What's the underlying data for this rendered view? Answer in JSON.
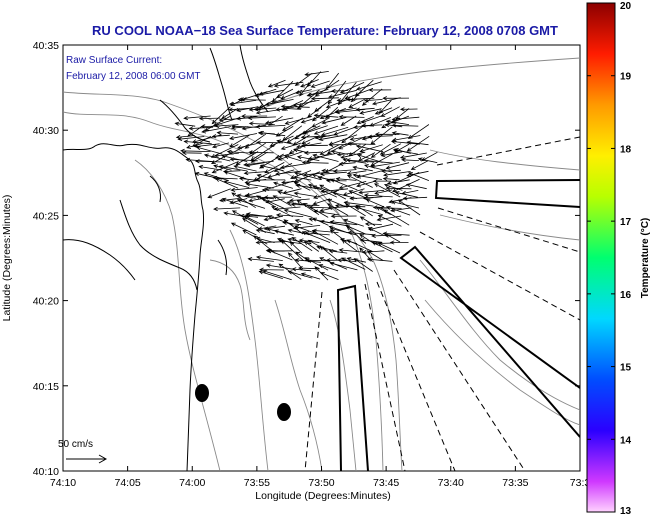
{
  "chart_data": {
    "type": "map-vector-field",
    "title": "RU COOL  NOAA−18  Sea Surface Temperature:  February 12, 2008 0708 GMT",
    "annotation_line1": "Raw Surface Current:",
    "annotation_line2": "February 12, 2008 06:00 GMT",
    "xlabel": "Longitude (Degrees:Minutes)",
    "ylabel": "Latitude (Degrees:Minutes)",
    "x_ticks": [
      "74:10",
      "74:05",
      "74:00",
      "73:55",
      "73:50",
      "73:45",
      "73:40",
      "73:35",
      "73:3"
    ],
    "y_ticks": [
      "40:35",
      "40:30",
      "40:25",
      "40:20",
      "40:15",
      "40:10"
    ],
    "xlim_deg_west": [
      74.1667,
      73.5
    ],
    "ylim_deg_north": [
      40.1667,
      40.5833
    ],
    "scale_label": "50 cm/s",
    "colorbar": {
      "label": "Temperature (°C)",
      "range": [
        13,
        20
      ],
      "ticks": [
        "20",
        "19",
        "18",
        "17",
        "16",
        "15",
        "14",
        "13"
      ]
    },
    "current_field": {
      "unit": "cm/s",
      "dominant_direction": "toward the southwest/south-southwest",
      "typical_speed_cm_s": 55
    }
  },
  "colors": {
    "title_text": "#1a1aa6",
    "map_background": "#ffffff",
    "coastline": "#000000",
    "bathymetry": "#808080",
    "vectors": "#000000"
  }
}
